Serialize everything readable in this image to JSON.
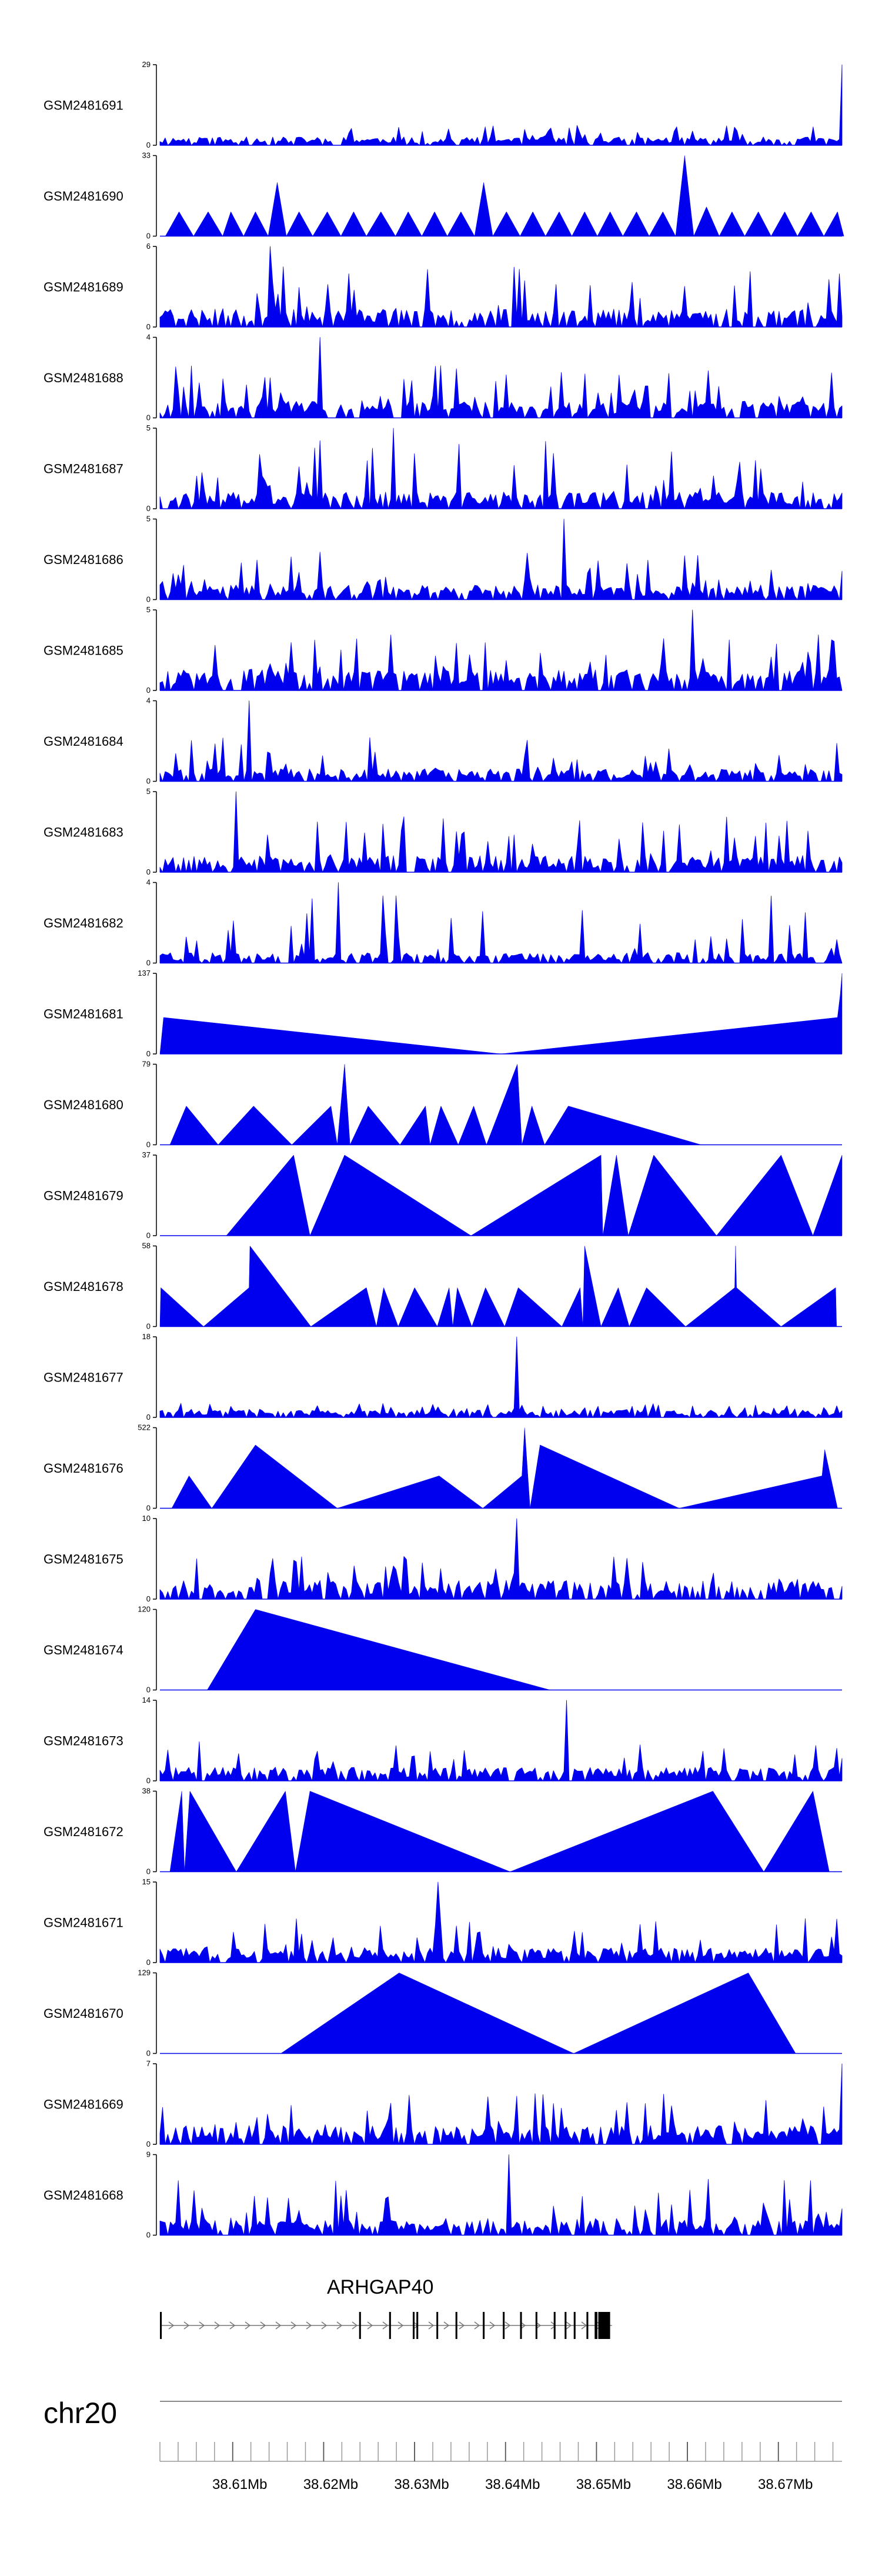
{
  "chart_data": {
    "type": "area",
    "colors": {
      "signal": "#0000EE",
      "axis": "#000000",
      "gene": "#000000"
    },
    "x_unit": "Mb",
    "xlim": [
      38.6,
      38.675
    ],
    "tracks": [
      {
        "name": "GSM2481691",
        "ylim": [
          0,
          29
        ],
        "ymax_label": "29",
        "ymin_label": "0",
        "style": "dense",
        "seed": 11,
        "level": 0.08,
        "peak": 0.25,
        "spike_x": 38.675,
        "spike_frac": 1.0
      },
      {
        "name": "GSM2481690",
        "ylim": [
          0,
          33
        ],
        "ymax_label": "33",
        "ymin_label": "0",
        "style": "spiky",
        "points": [
          [
            38.6006,
            0
          ],
          [
            38.6021,
            10
          ],
          [
            38.6037,
            0
          ],
          [
            38.6053,
            10
          ],
          [
            38.6069,
            0
          ],
          [
            38.6078,
            10
          ],
          [
            38.6092,
            0
          ],
          [
            38.6105,
            10
          ],
          [
            38.6119,
            0
          ],
          [
            38.6129,
            22
          ],
          [
            38.6139,
            0
          ],
          [
            38.6153,
            10
          ],
          [
            38.6168,
            0
          ],
          [
            38.6184,
            10
          ],
          [
            38.6199,
            0
          ],
          [
            38.6213,
            10
          ],
          [
            38.6227,
            0
          ],
          [
            38.6243,
            10
          ],
          [
            38.6259,
            0
          ],
          [
            38.6273,
            10
          ],
          [
            38.6288,
            0
          ],
          [
            38.6302,
            10
          ],
          [
            38.6316,
            0
          ],
          [
            38.6331,
            10
          ],
          [
            38.6346,
            0
          ],
          [
            38.6356,
            22
          ],
          [
            38.6366,
            0
          ],
          [
            38.6381,
            10
          ],
          [
            38.6396,
            0
          ],
          [
            38.641,
            10
          ],
          [
            38.6424,
            0
          ],
          [
            38.6439,
            10
          ],
          [
            38.6453,
            0
          ],
          [
            38.6467,
            10
          ],
          [
            38.6481,
            0
          ],
          [
            38.6495,
            10
          ],
          [
            38.6509,
            0
          ],
          [
            38.6524,
            10
          ],
          [
            38.6538,
            0
          ],
          [
            38.6553,
            10
          ],
          [
            38.6567,
            0
          ],
          [
            38.6577,
            33
          ],
          [
            38.6587,
            0
          ],
          [
            38.6601,
            12
          ],
          [
            38.6615,
            0
          ],
          [
            38.6629,
            10
          ],
          [
            38.6643,
            0
          ],
          [
            38.6658,
            10
          ],
          [
            38.6672,
            0
          ],
          [
            38.6687,
            10
          ],
          [
            38.6701,
            0
          ],
          [
            38.6716,
            10
          ],
          [
            38.673,
            0
          ],
          [
            38.6745,
            10
          ],
          [
            38.6752,
            0
          ]
        ]
      },
      {
        "name": "GSM2481689",
        "ylim": [
          0,
          6
        ],
        "ymax_label": "6",
        "ymin_label": "0",
        "style": "dense",
        "seed": 23,
        "level": 0.18,
        "peak": 0.75,
        "spike_x": 38.6121,
        "spike_frac": 1.0
      },
      {
        "name": "GSM2481688",
        "ylim": [
          0,
          4
        ],
        "ymax_label": "4",
        "ymin_label": "0",
        "style": "dense",
        "seed": 31,
        "level": 0.16,
        "peak": 0.65,
        "spike_x": 38.6175,
        "spike_frac": 1.0
      },
      {
        "name": "GSM2481687",
        "ylim": [
          0,
          5
        ],
        "ymax_label": "5",
        "ymin_label": "0",
        "style": "dense",
        "seed": 37,
        "level": 0.16,
        "peak": 0.85,
        "spike_x": 38.6258,
        "spike_frac": 1.0
      },
      {
        "name": "GSM2481686",
        "ylim": [
          0,
          5
        ],
        "ymax_label": "5",
        "ymin_label": "0",
        "style": "dense",
        "seed": 41,
        "level": 0.14,
        "peak": 0.6,
        "spike_x": 38.6445,
        "spike_frac": 1.0
      },
      {
        "name": "GSM2481685",
        "ylim": [
          0,
          5
        ],
        "ymax_label": "5",
        "ymin_label": "0",
        "style": "dense",
        "seed": 43,
        "level": 0.2,
        "peak": 0.7,
        "spike_x": 38.6587,
        "spike_frac": 1.0
      },
      {
        "name": "GSM2481684",
        "ylim": [
          0,
          4
        ],
        "ymax_label": "4",
        "ymin_label": "0",
        "style": "dense",
        "seed": 47,
        "level": 0.12,
        "peak": 0.55,
        "spike_x": 38.6098,
        "spike_frac": 1.0
      },
      {
        "name": "GSM2481683",
        "ylim": [
          0,
          5
        ],
        "ymax_label": "5",
        "ymin_label": "0",
        "style": "dense",
        "seed": 53,
        "level": 0.16,
        "peak": 0.7,
        "spike_x": 38.6085,
        "spike_frac": 1.0
      },
      {
        "name": "GSM2481682",
        "ylim": [
          0,
          4
        ],
        "ymax_label": "4",
        "ymin_label": "0",
        "style": "dense",
        "seed": 59,
        "level": 0.1,
        "peak": 0.85,
        "spike_x": 38.6195,
        "spike_frac": 1.0
      },
      {
        "name": "GSM2481681",
        "ylim": [
          0,
          137
        ],
        "ymax_label": "137",
        "ymin_label": "0",
        "style": "poly",
        "points": [
          [
            38.6,
            0
          ],
          [
            38.6004,
            62
          ],
          [
            38.6375,
            0
          ],
          [
            38.6745,
            62
          ],
          [
            38.6748,
            100
          ],
          [
            38.675,
            137
          ],
          [
            38.675,
            0
          ]
        ]
      },
      {
        "name": "GSM2481680",
        "ylim": [
          0,
          79
        ],
        "ymax_label": "79",
        "ymin_label": "0",
        "style": "poly",
        "points": [
          [
            38.6011,
            0
          ],
          [
            38.6029,
            38
          ],
          [
            38.6064,
            0
          ],
          [
            38.6103,
            38
          ],
          [
            38.6145,
            0
          ],
          [
            38.6188,
            38
          ],
          [
            38.6195,
            0
          ],
          [
            38.6203,
            79
          ],
          [
            38.6209,
            0
          ],
          [
            38.6229,
            38
          ],
          [
            38.6264,
            0
          ],
          [
            38.6292,
            38
          ],
          [
            38.6297,
            0
          ],
          [
            38.6309,
            38
          ],
          [
            38.6328,
            0
          ],
          [
            38.6345,
            38
          ],
          [
            38.6359,
            0
          ],
          [
            38.6393,
            79
          ],
          [
            38.6398,
            0
          ],
          [
            38.6409,
            38
          ],
          [
            38.6423,
            0
          ],
          [
            38.6449,
            38
          ],
          [
            38.6595,
            0
          ]
        ]
      },
      {
        "name": "GSM2481679",
        "ylim": [
          0,
          37
        ],
        "ymax_label": "37",
        "ymin_label": "0",
        "style": "poly",
        "points": [
          [
            38.6073,
            0
          ],
          [
            38.6147,
            37
          ],
          [
            38.6165,
            0
          ],
          [
            38.6203,
            37
          ],
          [
            38.6342,
            0
          ],
          [
            38.6485,
            37
          ],
          [
            38.6487,
            0
          ],
          [
            38.6502,
            37
          ],
          [
            38.6515,
            0
          ],
          [
            38.6543,
            37
          ],
          [
            38.6612,
            0
          ],
          [
            38.6683,
            37
          ],
          [
            38.6718,
            0
          ],
          [
            38.675,
            37
          ],
          [
            38.675,
            0
          ]
        ]
      },
      {
        "name": "GSM2481678",
        "ylim": [
          0,
          58
        ],
        "ymax_label": "58",
        "ymin_label": "0",
        "style": "poly",
        "points": [
          [
            38.6,
            0
          ],
          [
            38.6001,
            28
          ],
          [
            38.6048,
            0
          ],
          [
            38.6098,
            28
          ],
          [
            38.6099,
            58
          ],
          [
            38.6166,
            0
          ],
          [
            38.6227,
            28
          ],
          [
            38.6238,
            0
          ],
          [
            38.6246,
            28
          ],
          [
            38.6262,
            0
          ],
          [
            38.628,
            28
          ],
          [
            38.6305,
            0
          ],
          [
            38.6318,
            28
          ],
          [
            38.6322,
            0
          ],
          [
            38.6327,
            28
          ],
          [
            38.6343,
            0
          ],
          [
            38.6358,
            28
          ],
          [
            38.6379,
            0
          ],
          [
            38.6394,
            28
          ],
          [
            38.6442,
            0
          ],
          [
            38.6462,
            28
          ],
          [
            38.6465,
            0
          ],
          [
            38.6467,
            58
          ],
          [
            38.6485,
            0
          ],
          [
            38.6504,
            28
          ],
          [
            38.6516,
            0
          ],
          [
            38.6535,
            28
          ],
          [
            38.6578,
            0
          ],
          [
            38.6632,
            28
          ],
          [
            38.6633,
            58
          ],
          [
            38.6634,
            28
          ],
          [
            38.6683,
            0
          ],
          [
            38.6743,
            28
          ],
          [
            38.6744,
            0
          ]
        ]
      },
      {
        "name": "GSM2481677",
        "ylim": [
          0,
          18
        ],
        "ymax_label": "18",
        "ymin_label": "0",
        "style": "dense",
        "seed": 61,
        "level": 0.07,
        "peak": 0.18,
        "spike_x": 38.6392,
        "spike_frac": 1.0
      },
      {
        "name": "GSM2481676",
        "ylim": [
          0,
          522
        ],
        "ymax_label": "522",
        "ymin_label": "0",
        "style": "poly",
        "points": [
          [
            38.6013,
            0
          ],
          [
            38.6032,
            210
          ],
          [
            38.6057,
            0
          ],
          [
            38.6105,
            410
          ],
          [
            38.6195,
            0
          ],
          [
            38.6307,
            210
          ],
          [
            38.6355,
            0
          ],
          [
            38.6398,
            210
          ],
          [
            38.6401,
            522
          ],
          [
            38.6407,
            0
          ],
          [
            38.6418,
            410
          ],
          [
            38.6571,
            0
          ],
          [
            38.6728,
            210
          ],
          [
            38.6731,
            380
          ],
          [
            38.6745,
            0
          ]
        ]
      },
      {
        "name": "GSM2481675",
        "ylim": [
          0,
          10
        ],
        "ymax_label": "10",
        "ymin_label": "0",
        "style": "dense",
        "seed": 67,
        "level": 0.18,
        "peak": 0.55,
        "spike_x": 38.6393,
        "spike_frac": 1.0
      },
      {
        "name": "GSM2481674",
        "ylim": [
          0,
          120
        ],
        "ymax_label": "120",
        "ymin_label": "0",
        "style": "poly",
        "points": [
          [
            38.6052,
            0
          ],
          [
            38.6105,
            120
          ],
          [
            38.6429,
            0
          ]
        ]
      },
      {
        "name": "GSM2481673",
        "ylim": [
          0,
          14
        ],
        "ymax_label": "14",
        "ymin_label": "0",
        "style": "dense",
        "seed": 71,
        "level": 0.13,
        "peak": 0.5,
        "spike_x": 38.6448,
        "spike_frac": 1.0
      },
      {
        "name": "GSM2481672",
        "ylim": [
          0,
          38
        ],
        "ymax_label": "38",
        "ymin_label": "0",
        "style": "poly",
        "points": [
          [
            38.6011,
            0
          ],
          [
            38.6024,
            38
          ],
          [
            38.6027,
            0
          ],
          [
            38.6033,
            38
          ],
          [
            38.6084,
            0
          ],
          [
            38.6138,
            38
          ],
          [
            38.6149,
            0
          ],
          [
            38.6165,
            38
          ],
          [
            38.6385,
            0
          ],
          [
            38.6608,
            38
          ],
          [
            38.6664,
            0
          ],
          [
            38.6718,
            38
          ],
          [
            38.6736,
            0
          ]
        ]
      },
      {
        "name": "GSM2481671",
        "ylim": [
          0,
          15
        ],
        "ymax_label": "15",
        "ymin_label": "0",
        "style": "dense",
        "seed": 73,
        "level": 0.14,
        "peak": 0.55,
        "spike_x": 38.6306,
        "spike_frac": 1.0
      },
      {
        "name": "GSM2481670",
        "ylim": [
          0,
          129
        ],
        "ymax_label": "129",
        "ymin_label": "0",
        "style": "poly",
        "points": [
          [
            38.6133,
            0
          ],
          [
            38.6263,
            129
          ],
          [
            38.6455,
            0
          ],
          [
            38.6647,
            129
          ],
          [
            38.6699,
            0
          ]
        ]
      },
      {
        "name": "GSM2481669",
        "ylim": [
          0,
          7
        ],
        "ymax_label": "7",
        "ymin_label": "0",
        "style": "dense",
        "seed": 79,
        "level": 0.18,
        "peak": 0.65,
        "spike_x": 38.675,
        "spike_frac": 1.0
      },
      {
        "name": "GSM2481668",
        "ylim": [
          0,
          9
        ],
        "ymax_label": "9",
        "ymin_label": "0",
        "style": "dense",
        "seed": 83,
        "level": 0.16,
        "peak": 0.7,
        "spike_x": 38.6385,
        "spike_frac": 1.0
      }
    ],
    "gene": {
      "name": "ARHGAP40",
      "chrom": "chr20",
      "start": 38.6,
      "end": 38.6497,
      "strand": "+",
      "exons": [
        [
          38.6,
          38.6002
        ],
        [
          38.6219,
          38.6221
        ],
        [
          38.6252,
          38.6254
        ],
        [
          38.6278,
          38.628
        ],
        [
          38.6282,
          38.6284
        ],
        [
          38.6304,
          38.6305
        ],
        [
          38.6325,
          38.6327
        ],
        [
          38.6355,
          38.6357
        ],
        [
          38.6377,
          38.6379
        ],
        [
          38.6396,
          38.6398
        ],
        [
          38.6413,
          38.6415
        ],
        [
          38.6433,
          38.6435
        ],
        [
          38.6445,
          38.6447
        ],
        [
          38.6455,
          38.6457
        ],
        [
          38.6469,
          38.6471
        ],
        [
          38.6478,
          38.6481
        ],
        [
          38.6482,
          38.6495
        ]
      ]
    },
    "axis": {
      "label": "chr20",
      "tick_labels": [
        "38.61Mb",
        "38.62Mb",
        "38.63Mb",
        "38.64Mb",
        "38.65Mb",
        "38.66Mb",
        "38.67Mb"
      ],
      "tick_values": [
        38.608,
        38.618,
        38.628,
        38.638,
        38.648,
        38.658,
        38.668
      ],
      "minor_step": 0.002
    }
  }
}
